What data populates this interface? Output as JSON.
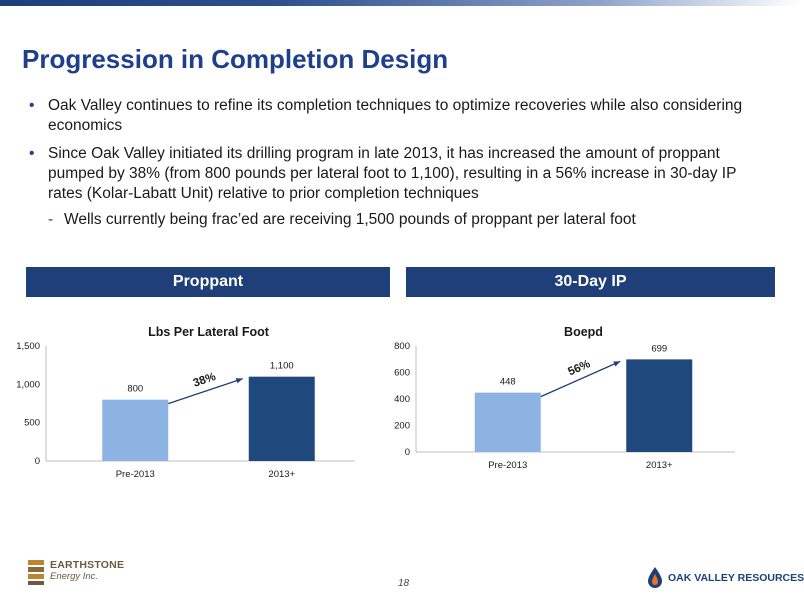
{
  "title": "Progression in Completion Design",
  "bullets": [
    {
      "text": "Oak Valley continues to refine its completion techniques to optimize recoveries while also considering economics"
    },
    {
      "text": "Since Oak Valley initiated its drilling program in late 2013, it has increased the amount of proppant pumped by 38% (from 800 pounds per lateral foot to 1,100), resulting in a 56% increase in 30-day IP rates (Kolar-Labatt Unit) relative to prior completion techniques",
      "sub": "Wells currently being frac’ed are receiving 1,500 pounds of proppant per lateral foot"
    }
  ],
  "panels": {
    "left_header": "Proppant",
    "right_header": "30-Day IP"
  },
  "colors": {
    "accent": "#1f3f7a",
    "bar_light": "#8db3e2",
    "bar_dark": "#1f497d"
  },
  "chart_data": [
    {
      "type": "bar",
      "title": "Lbs Per Lateral Foot",
      "categories": [
        "Pre-2013",
        "2013+"
      ],
      "values": [
        800,
        1100
      ],
      "value_labels": [
        "800",
        "1,100"
      ],
      "ylim": [
        0,
        1500
      ],
      "yticks": [
        0,
        500,
        1000,
        1500
      ],
      "ytick_labels": [
        "0",
        "500",
        "1,000",
        "1,500"
      ],
      "annotation": "38%",
      "xlabel": "",
      "ylabel": ""
    },
    {
      "type": "bar",
      "title": "Boepd",
      "categories": [
        "Pre-2013",
        "2013+"
      ],
      "values": [
        448,
        699
      ],
      "value_labels": [
        "448",
        "699"
      ],
      "ylim": [
        0,
        800
      ],
      "yticks": [
        0,
        200,
        400,
        600,
        800
      ],
      "ytick_labels": [
        "0",
        "200",
        "400",
        "600",
        "800"
      ],
      "annotation": "56%",
      "xlabel": "",
      "ylabel": ""
    }
  ],
  "footer": {
    "page_number": "18",
    "left_logo_line1": "EARTHSTONE",
    "left_logo_line2": "Energy Inc.",
    "right_logo": "Oak Valley Resources"
  }
}
